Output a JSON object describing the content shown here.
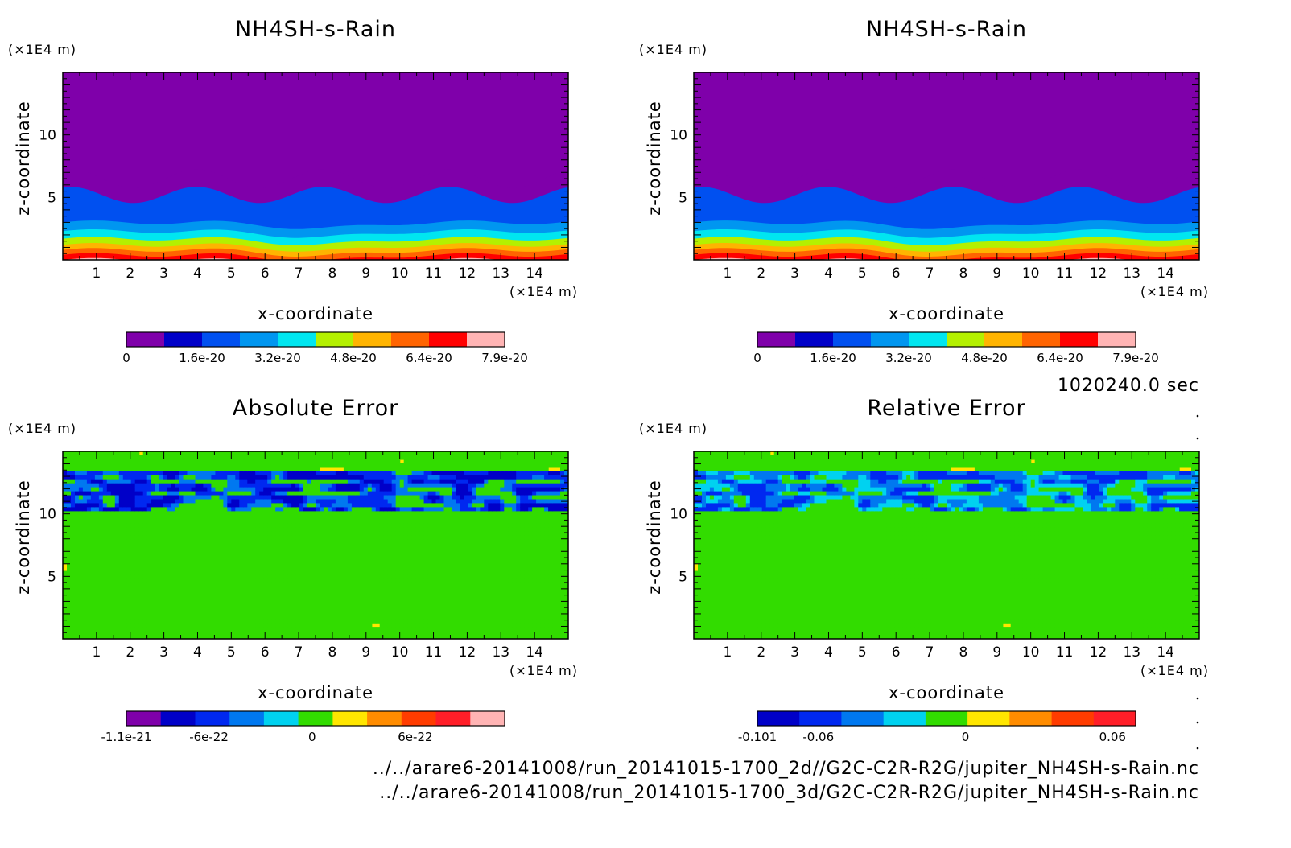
{
  "chart_data": [
    {
      "type": "heatmap",
      "title": "NH4SH-s-Rain",
      "xlabel": "x-coordinate",
      "ylabel": "z-coordinate",
      "x_unit": "(×1E4 m)",
      "y_unit": "(×1E4 m)",
      "xlim": [
        0,
        15
      ],
      "ylim": [
        0,
        15
      ],
      "xticks": [
        1,
        2,
        3,
        4,
        5,
        6,
        7,
        8,
        9,
        10,
        11,
        12,
        13,
        14
      ],
      "yticks": [
        5,
        10
      ],
      "colorbar": {
        "colors": [
          "#7f00aa",
          "#0000c8",
          "#0050f0",
          "#0096f0",
          "#00e6f0",
          "#b4f000",
          "#ffb400",
          "#ff6400",
          "#ff0000",
          "#ffb4b4"
        ],
        "labels": [
          "0",
          "1.6e-20",
          "3.2e-20",
          "4.8e-20",
          "6.4e-20",
          "7.9e-20"
        ],
        "label_positions": [
          0,
          2,
          4,
          6,
          8,
          10
        ]
      },
      "field": "layered",
      "profile": [
        {
          "z": 0.0,
          "level": 9
        },
        {
          "z": 0.4,
          "level": 8
        },
        {
          "z": 0.8,
          "level": 7
        },
        {
          "z": 1.2,
          "level": 6
        },
        {
          "z": 1.7,
          "level": 5
        },
        {
          "z": 2.3,
          "level": 4
        },
        {
          "z": 3.0,
          "level": 3
        },
        {
          "z": 5.2,
          "level": 2
        },
        {
          "z": 6.5,
          "level": 0
        }
      ]
    },
    {
      "type": "heatmap",
      "title": "NH4SH-s-Rain",
      "xlabel": "x-coordinate",
      "ylabel": "z-coordinate",
      "x_unit": "(×1E4 m)",
      "y_unit": "(×1E4 m)",
      "xlim": [
        0,
        15
      ],
      "ylim": [
        0,
        15
      ],
      "xticks": [
        1,
        2,
        3,
        4,
        5,
        6,
        7,
        8,
        9,
        10,
        11,
        12,
        13,
        14
      ],
      "yticks": [
        5,
        10
      ],
      "colorbar": {
        "colors": [
          "#7f00aa",
          "#0000c8",
          "#0050f0",
          "#0096f0",
          "#00e6f0",
          "#b4f000",
          "#ffb400",
          "#ff6400",
          "#ff0000",
          "#ffb4b4"
        ],
        "labels": [
          "0",
          "1.6e-20",
          "3.2e-20",
          "4.8e-20",
          "6.4e-20",
          "7.9e-20"
        ],
        "label_positions": [
          0,
          2,
          4,
          6,
          8,
          10
        ]
      },
      "field": "layered",
      "profile": [
        {
          "z": 0.0,
          "level": 9
        },
        {
          "z": 0.4,
          "level": 8
        },
        {
          "z": 0.8,
          "level": 7
        },
        {
          "z": 1.2,
          "level": 6
        },
        {
          "z": 1.7,
          "level": 5
        },
        {
          "z": 2.3,
          "level": 4
        },
        {
          "z": 3.0,
          "level": 3
        },
        {
          "z": 5.2,
          "level": 2
        },
        {
          "z": 6.5,
          "level": 0
        }
      ]
    },
    {
      "type": "heatmap",
      "title": "Absolute Error",
      "xlabel": "x-coordinate",
      "ylabel": "z-coordinate",
      "x_unit": "(×1E4 m)",
      "y_unit": "(×1E4 m)",
      "xlim": [
        0,
        15
      ],
      "ylim": [
        0,
        15
      ],
      "xticks": [
        1,
        2,
        3,
        4,
        5,
        6,
        7,
        8,
        9,
        10,
        11,
        12,
        13,
        14
      ],
      "yticks": [
        5,
        10
      ],
      "colorbar": {
        "colors": [
          "#7f00aa",
          "#0000c8",
          "#0028f0",
          "#0078f0",
          "#00d2f0",
          "#32dc00",
          "#ffe600",
          "#ff8c00",
          "#ff3c00",
          "#ff1e28",
          "#ffb4b4"
        ],
        "labels": [
          "-1.1e-21",
          "-6e-22",
          "0",
          "6e-22"
        ],
        "label_positions": [
          0,
          2.4,
          5.4,
          8.4
        ]
      },
      "field": "error",
      "background": "#ffe600",
      "secondary": "#32dc00"
    },
    {
      "type": "heatmap",
      "title": "Relative Error",
      "xlabel": "x-coordinate",
      "ylabel": "z-coordinate",
      "x_unit": "(×1E4 m)",
      "y_unit": "(×1E4 m)",
      "xlim": [
        0,
        15
      ],
      "ylim": [
        0,
        15
      ],
      "xticks": [
        1,
        2,
        3,
        4,
        5,
        6,
        7,
        8,
        9,
        10,
        11,
        12,
        13,
        14
      ],
      "yticks": [
        5,
        10
      ],
      "colorbar": {
        "colors": [
          "#0000c8",
          "#0028f0",
          "#0078f0",
          "#00d2f0",
          "#32dc00",
          "#ffe600",
          "#ff8c00",
          "#ff3c00",
          "#ff1e28"
        ],
        "labels": [
          "-0.101",
          "-0.06",
          "0",
          "0.06"
        ],
        "label_positions": [
          0,
          1.45,
          4.95,
          8.45
        ]
      },
      "field": "error",
      "background": "#ffe600",
      "secondary": "#32dc00"
    }
  ],
  "time_label": "1020240.0 sec",
  "file_paths": [
    "../../arare6-20141008/run_20141015-1700_2d//G2C-C2R-R2G/jupiter_NH4SH-s-Rain.nc",
    "../../arare6-20141008/run_20141015-1700_3d/G2C-C2R-R2G/jupiter_NH4SH-s-Rain.nc"
  ]
}
